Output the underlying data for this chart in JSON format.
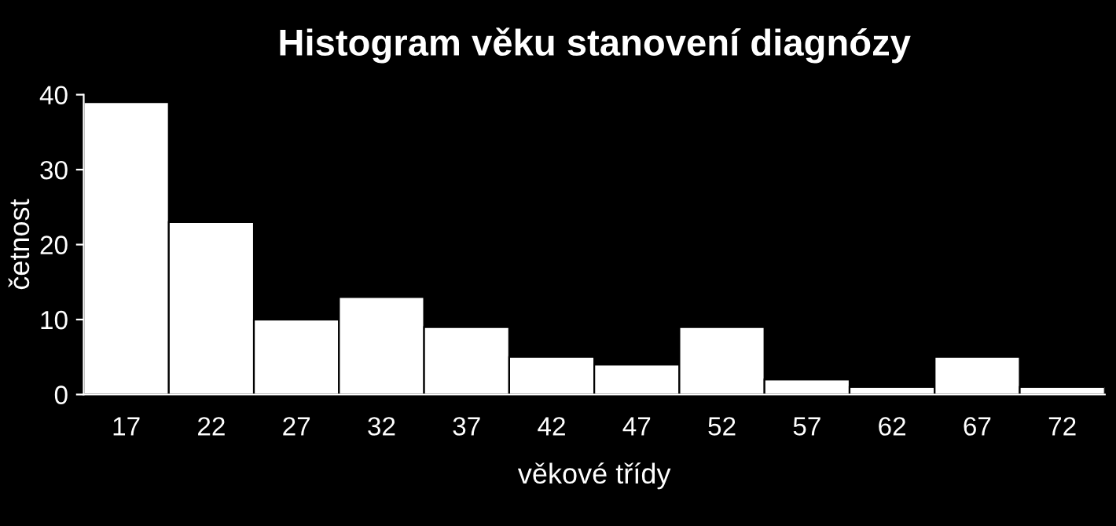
{
  "chart_data": {
    "type": "bar",
    "title": "Histogram věku stanovení diagnózy",
    "xlabel": "věkové třídy",
    "ylabel": "četnost",
    "categories": [
      "17",
      "22",
      "27",
      "32",
      "37",
      "42",
      "47",
      "52",
      "57",
      "62",
      "67",
      "72"
    ],
    "values": [
      39,
      23,
      10,
      13,
      9,
      5,
      4,
      9,
      2,
      1,
      5,
      1
    ],
    "color": "#ffffff",
    "ylim": [
      0,
      40
    ],
    "yticks": [
      0,
      10,
      20,
      30,
      40
    ],
    "grid": false
  }
}
